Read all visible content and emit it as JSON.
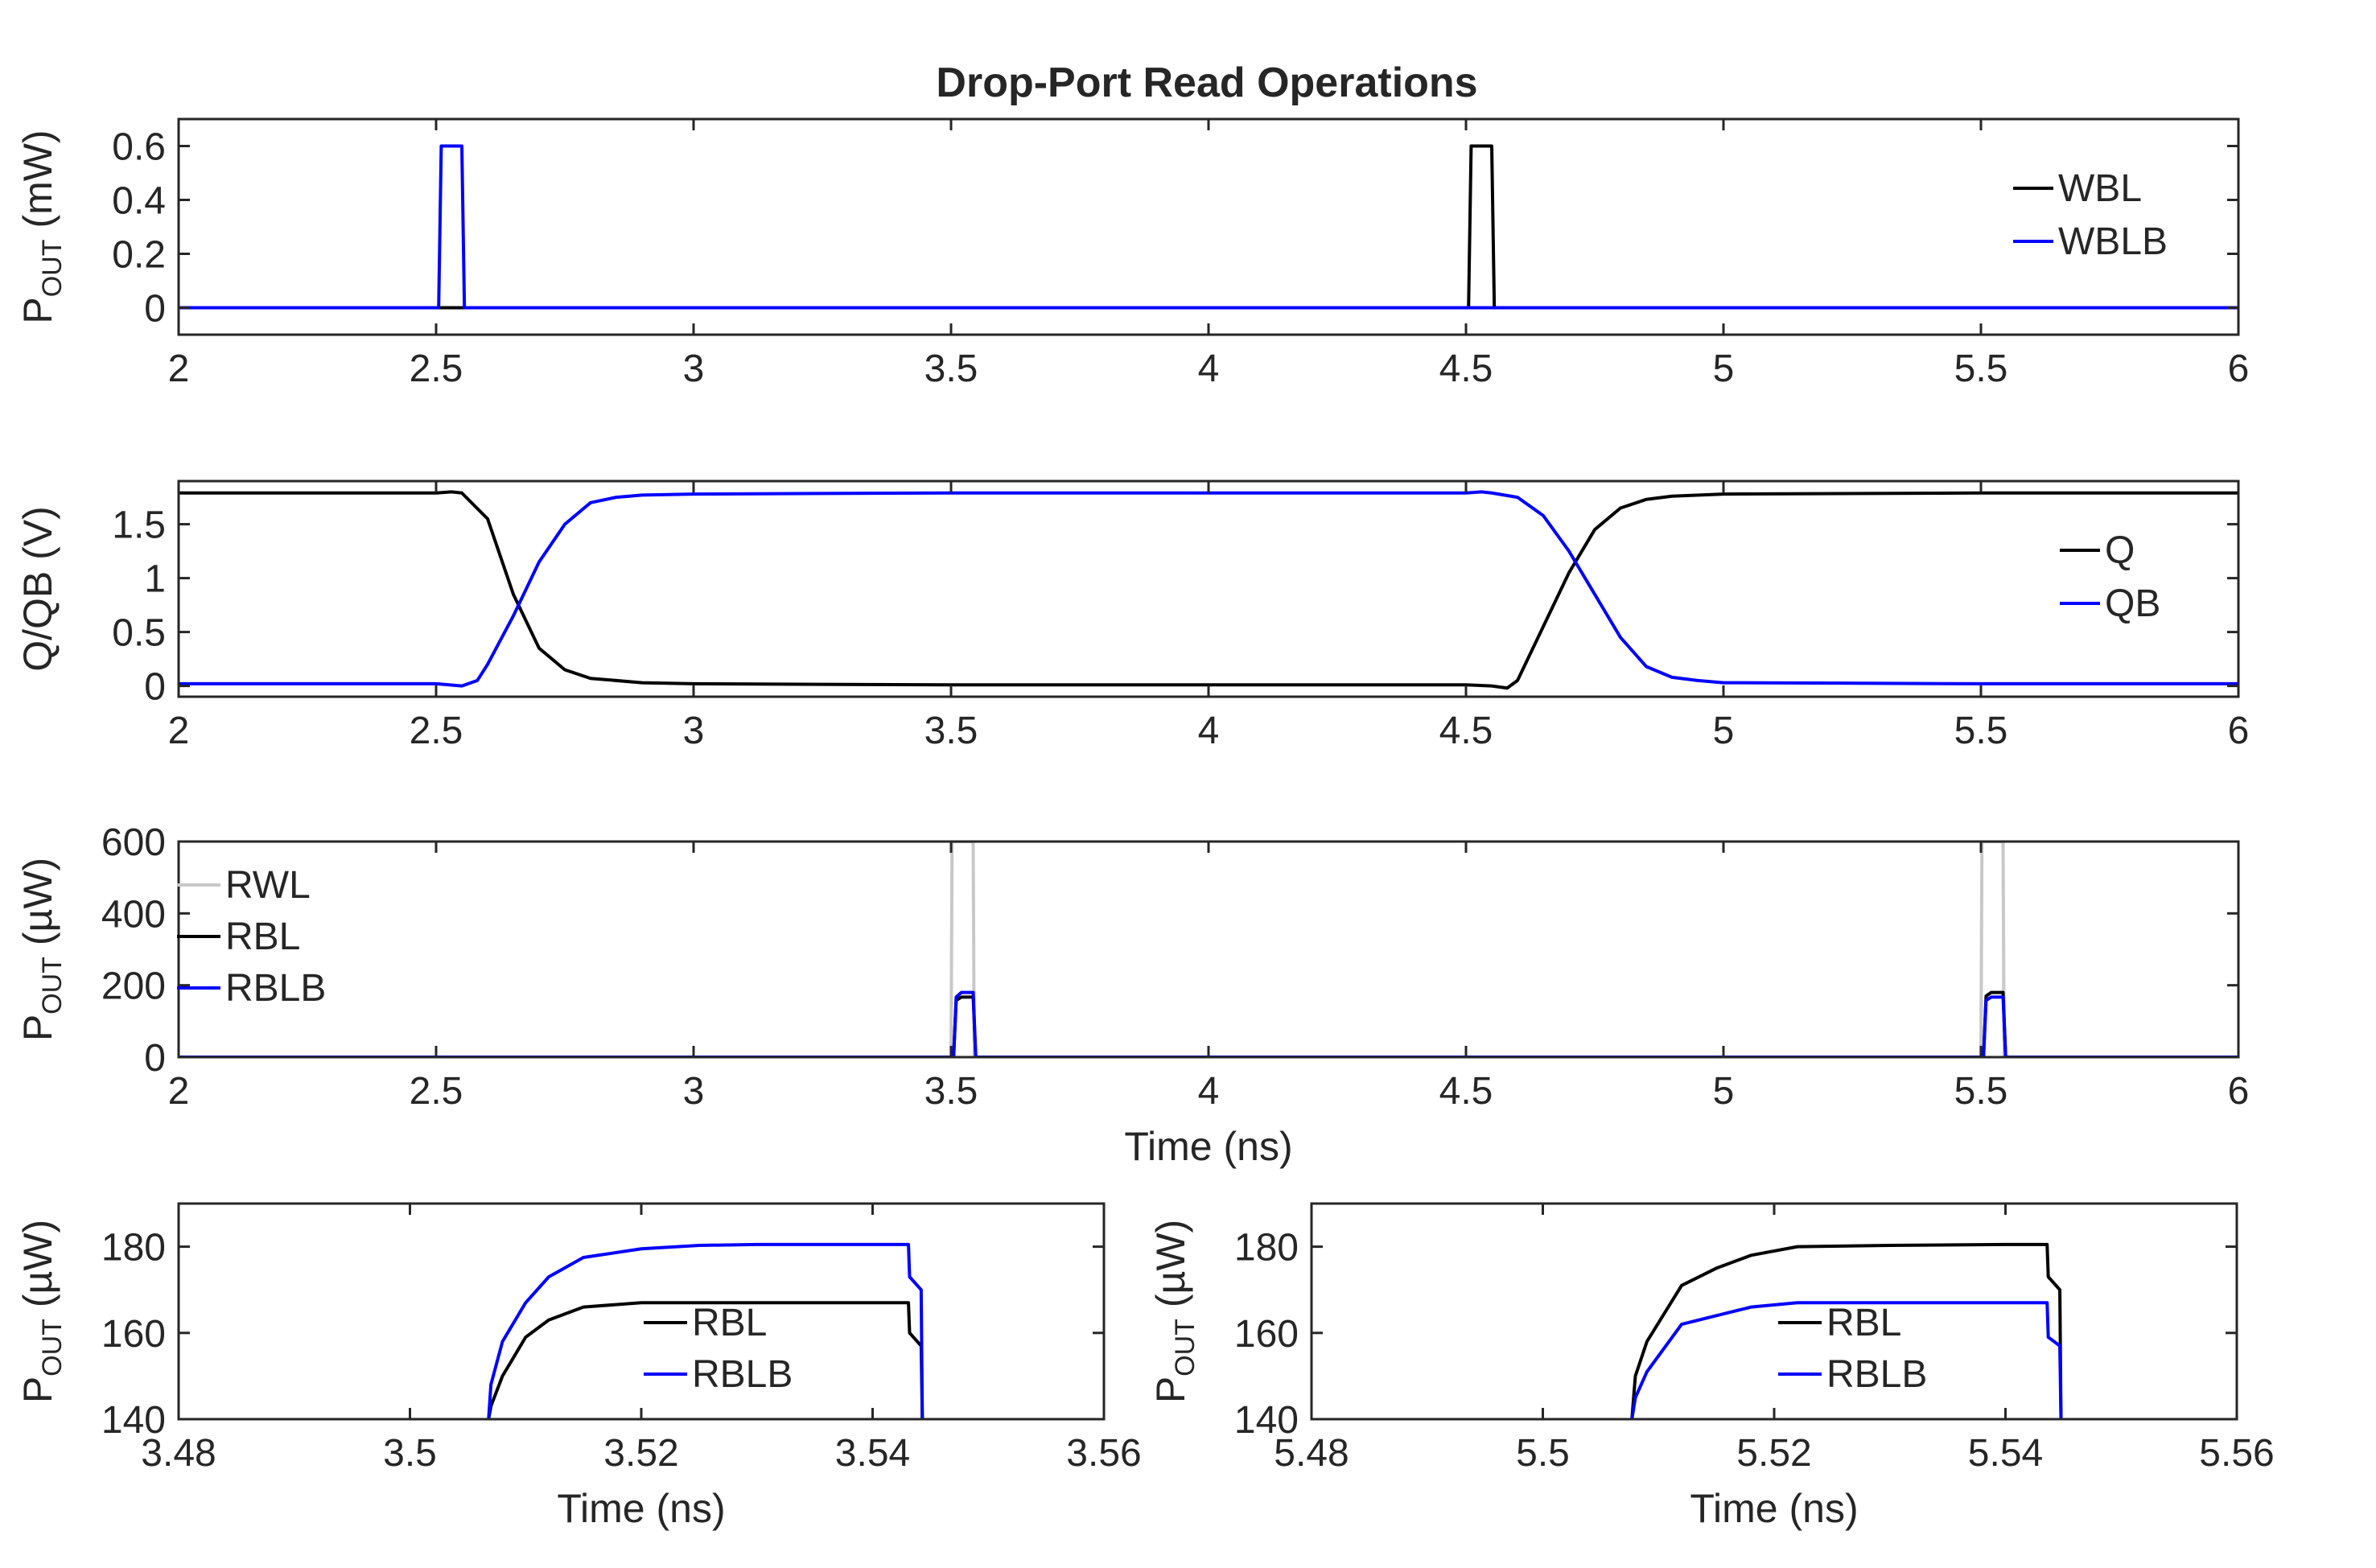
{
  "chart_data": [
    {
      "type": "line",
      "title": "Drop-Port Read Operations",
      "xlabel": "",
      "ylabel": "P_OUT (mW)",
      "ylabel_main": "P",
      "ylabel_sub": "OUT",
      "ylabel_unit": " (mW)",
      "xlim": [
        2,
        6
      ],
      "ylim": [
        -0.1,
        0.7
      ],
      "xticks": [
        2,
        2.5,
        3,
        3.5,
        4,
        4.5,
        5,
        5.5,
        6
      ],
      "xtick_labels": [
        "2",
        "2.5",
        "3",
        "3.5",
        "4",
        "4.5",
        "5",
        "5.5",
        "6"
      ],
      "yticks": [
        0,
        0.2,
        0.4,
        0.6
      ],
      "ytick_labels": [
        "0",
        "0.2",
        "0.4",
        "0.6"
      ],
      "grid": false,
      "legend_position": "right",
      "series": [
        {
          "name": "WBL",
          "color": "#000000",
          "x": [
            2,
            4.505,
            4.51,
            4.55,
            4.555,
            6
          ],
          "y": [
            0,
            0,
            0.6,
            0.6,
            0,
            0
          ]
        },
        {
          "name": "WBLB",
          "color": "#0000ff",
          "x": [
            2,
            2.505,
            2.51,
            2.55,
            2.555,
            6
          ],
          "y": [
            0,
            0,
            0.6,
            0.6,
            0,
            0
          ]
        }
      ]
    },
    {
      "type": "line",
      "title": "",
      "xlabel": "",
      "ylabel": "Q/QB (V)",
      "xlim": [
        2,
        6
      ],
      "ylim": [
        -0.1,
        1.9
      ],
      "xticks": [
        2,
        2.5,
        3,
        3.5,
        4,
        4.5,
        5,
        5.5,
        6
      ],
      "xtick_labels": [
        "2",
        "2.5",
        "3",
        "3.5",
        "4",
        "4.5",
        "5",
        "5.5",
        "6"
      ],
      "yticks": [
        0,
        0.5,
        1,
        1.5
      ],
      "ytick_labels": [
        "0",
        "0.5",
        "1",
        "1.5"
      ],
      "grid": false,
      "legend_position": "right",
      "series": [
        {
          "name": "Q",
          "color": "#000000",
          "x": [
            2,
            2.5,
            2.53,
            2.55,
            2.6,
            2.65,
            2.7,
            2.75,
            2.8,
            2.9,
            3.0,
            3.5,
            4.0,
            4.5,
            4.55,
            4.58,
            4.6,
            4.65,
            4.7,
            4.75,
            4.8,
            4.85,
            4.9,
            5.0,
            5.5,
            6
          ],
          "y": [
            1.79,
            1.79,
            1.8,
            1.79,
            1.55,
            0.85,
            0.35,
            0.15,
            0.07,
            0.03,
            0.02,
            0.01,
            0.01,
            0.01,
            0.0,
            -0.02,
            0.05,
            0.55,
            1.05,
            1.45,
            1.65,
            1.73,
            1.76,
            1.78,
            1.79,
            1.79
          ]
        },
        {
          "name": "QB",
          "color": "#0000ff",
          "x": [
            2,
            2.5,
            2.55,
            2.58,
            2.6,
            2.65,
            2.7,
            2.75,
            2.8,
            2.85,
            2.9,
            3.0,
            3.5,
            4.0,
            4.5,
            4.53,
            4.55,
            4.6,
            4.65,
            4.7,
            4.75,
            4.8,
            4.85,
            4.9,
            4.95,
            5.0,
            5.5,
            6
          ],
          "y": [
            0.02,
            0.02,
            0.0,
            0.05,
            0.2,
            0.65,
            1.15,
            1.5,
            1.7,
            1.75,
            1.77,
            1.78,
            1.79,
            1.79,
            1.79,
            1.8,
            1.79,
            1.75,
            1.58,
            1.25,
            0.85,
            0.45,
            0.18,
            0.08,
            0.05,
            0.03,
            0.02,
            0.02
          ]
        }
      ]
    },
    {
      "type": "line",
      "title": "",
      "xlabel": "Time (ns)",
      "ylabel": "P_OUT (µW)",
      "ylabel_main": "P",
      "ylabel_sub": "OUT",
      "ylabel_unit": " (µW)",
      "xlim": [
        2,
        6
      ],
      "ylim": [
        0,
        600
      ],
      "xticks": [
        2,
        2.5,
        3,
        3.5,
        4,
        4.5,
        5,
        5.5,
        6
      ],
      "xtick_labels": [
        "2",
        "2.5",
        "3",
        "3.5",
        "4",
        "4.5",
        "5",
        "5.5",
        "6"
      ],
      "yticks": [
        0,
        200,
        400,
        600
      ],
      "ytick_labels": [
        "0",
        "200",
        "400",
        "600"
      ],
      "grid": false,
      "legend_position": "top-left",
      "series": [
        {
          "name": "RWL",
          "color": "#c8c8c8",
          "x": [
            2,
            3.5,
            3.502,
            3.543,
            3.545,
            5.5,
            5.502,
            5.543,
            5.545,
            6
          ],
          "y": [
            0,
            0,
            600,
            600,
            0,
            0,
            600,
            600,
            0,
            0
          ]
        },
        {
          "name": "RBL",
          "color": "#000000",
          "x": [
            2,
            3.505,
            3.51,
            3.52,
            3.543,
            3.548,
            5.505,
            5.51,
            5.52,
            5.543,
            5.548,
            6
          ],
          "y": [
            0,
            0,
            158,
            167,
            167,
            0,
            0,
            170,
            180,
            180,
            0,
            0
          ]
        },
        {
          "name": "RBLB",
          "color": "#0000ff",
          "x": [
            2,
            3.505,
            3.51,
            3.52,
            3.543,
            3.548,
            5.505,
            5.51,
            5.52,
            5.543,
            5.548,
            6
          ],
          "y": [
            0,
            0,
            167,
            180,
            180,
            0,
            0,
            158,
            167,
            167,
            0,
            0
          ]
        }
      ]
    },
    {
      "type": "line",
      "title": "",
      "xlabel": "Time (ns)",
      "ylabel": "P_OUT (µW)",
      "ylabel_main": "P",
      "ylabel_sub": "OUT",
      "ylabel_unit": " (µW)",
      "xlim": [
        3.48,
        3.56
      ],
      "ylim": [
        140,
        190
      ],
      "xticks": [
        3.48,
        3.5,
        3.52,
        3.54,
        3.56
      ],
      "xtick_labels": [
        "3.48",
        "3.5",
        "3.52",
        "3.54",
        "3.56"
      ],
      "yticks": [
        140,
        160,
        180
      ],
      "ytick_labels": [
        "140",
        "160",
        "180"
      ],
      "grid": false,
      "legend_position": "bottom-right",
      "series": [
        {
          "name": "RBL",
          "color": "#000000",
          "x": [
            3.5068,
            3.507,
            3.508,
            3.51,
            3.512,
            3.515,
            3.52,
            3.53,
            3.54,
            3.5431,
            3.5432,
            3.5442,
            3.5443
          ],
          "y": [
            140,
            143,
            150,
            159,
            163,
            166,
            167,
            167,
            167,
            167,
            160,
            157,
            140
          ]
        },
        {
          "name": "RBLB",
          "color": "#0000ff",
          "x": [
            3.5068,
            3.507,
            3.508,
            3.51,
            3.512,
            3.515,
            3.52,
            3.525,
            3.53,
            3.54,
            3.5431,
            3.5432,
            3.5442,
            3.5443
          ],
          "y": [
            140,
            148,
            158,
            167,
            173,
            177.5,
            179.5,
            180.3,
            180.5,
            180.5,
            180.5,
            173,
            170,
            140
          ]
        }
      ]
    },
    {
      "type": "line",
      "title": "",
      "xlabel": "Time (ns)",
      "ylabel": "P_OUT (µW)",
      "ylabel_main": "P",
      "ylabel_sub": "OUT",
      "ylabel_unit": " (µW)",
      "xlim": [
        5.48,
        5.56
      ],
      "ylim": [
        140,
        190
      ],
      "xticks": [
        5.48,
        5.5,
        5.52,
        5.54,
        5.56
      ],
      "xtick_labels": [
        "5.48",
        "5.5",
        "5.52",
        "5.54",
        "5.56"
      ],
      "yticks": [
        140,
        160,
        180
      ],
      "ytick_labels": [
        "140",
        "160",
        "180"
      ],
      "grid": false,
      "legend_position": "bottom-right",
      "series": [
        {
          "name": "RBL",
          "color": "#000000",
          "x": [
            5.5077,
            5.508,
            5.509,
            5.512,
            5.515,
            5.518,
            5.522,
            5.53,
            5.54,
            5.5436,
            5.5437,
            5.5447,
            5.5448
          ],
          "y": [
            140,
            150,
            158,
            171,
            175,
            178,
            180,
            180.3,
            180.5,
            180.5,
            173,
            170,
            140
          ]
        },
        {
          "name": "RBLB",
          "color": "#0000ff",
          "x": [
            5.5077,
            5.508,
            5.509,
            5.512,
            5.515,
            5.518,
            5.522,
            5.53,
            5.54,
            5.5436,
            5.5437,
            5.5447,
            5.5448
          ],
          "y": [
            140,
            145,
            151,
            162,
            164,
            166,
            167,
            167,
            167,
            167,
            159,
            157,
            140
          ]
        }
      ]
    }
  ]
}
